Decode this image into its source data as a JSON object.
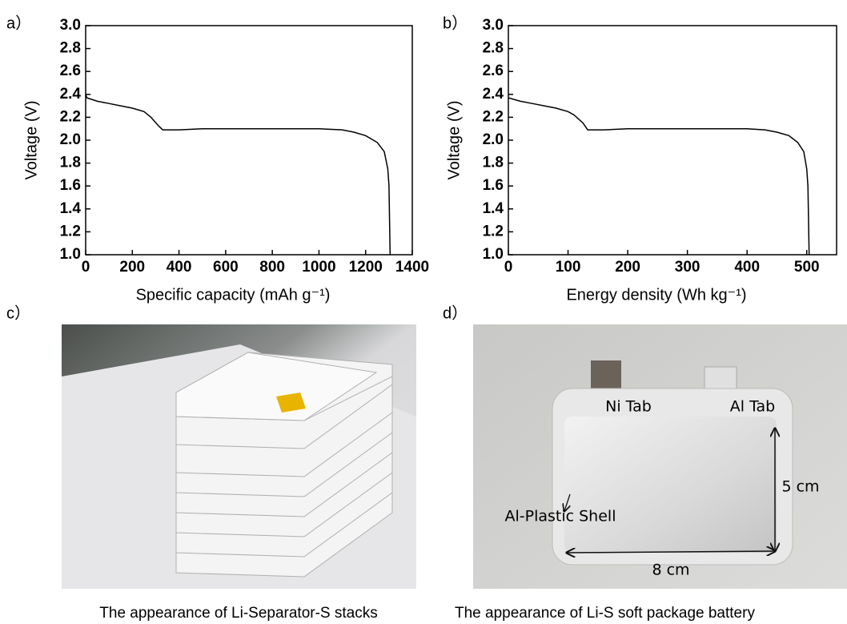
{
  "chart_data": [
    {
      "type": "line",
      "panel_label": "a）",
      "x_label": "Specific capacity (mAh g⁻¹)",
      "y_label": "Voltage (V)",
      "xlim": [
        0,
        1400
      ],
      "xticks": [
        0,
        200,
        400,
        600,
        800,
        1000,
        1200,
        1400
      ],
      "ylim": [
        1.0,
        3.0
      ],
      "yticks": [
        {
          "value": 1.0,
          "label": "1.0"
        },
        1.2,
        1.4,
        1.6,
        1.8,
        {
          "value": 2.0,
          "label": "2.0"
        },
        2.2,
        2.4,
        2.6,
        2.8,
        {
          "value": 3.0,
          "label": "3.0"
        }
      ],
      "series": [
        {
          "color": "#000000",
          "x": [
            0,
            5,
            50,
            100,
            150,
            200,
            250,
            280,
            310,
            330,
            400,
            500,
            600,
            800,
            1000,
            1100,
            1150,
            1200,
            1250,
            1280,
            1295,
            1300,
            1305
          ],
          "values": [
            2.4,
            2.37,
            2.34,
            2.32,
            2.3,
            2.28,
            2.25,
            2.2,
            2.13,
            2.09,
            2.09,
            2.1,
            2.1,
            2.1,
            2.1,
            2.09,
            2.07,
            2.04,
            1.98,
            1.9,
            1.75,
            1.6,
            1.0
          ]
        }
      ]
    },
    {
      "type": "line",
      "panel_label": "b）",
      "x_label": "Energy density (Wh kg⁻¹)",
      "y_label": "Voltage (V)",
      "xlim": [
        0,
        550
      ],
      "xticks": [
        0,
        100,
        200,
        300,
        400,
        500
      ],
      "ylim": [
        1.0,
        3.0
      ],
      "yticks": [
        {
          "value": 1.0,
          "label": "1.0"
        },
        1.2,
        1.4,
        1.6,
        1.8,
        {
          "value": 2.0,
          "label": "2.0"
        },
        2.2,
        2.4,
        2.6,
        2.8,
        {
          "value": 3.0,
          "label": "3.0"
        }
      ],
      "series": [
        {
          "color": "#000000",
          "x": [
            0,
            20,
            40,
            60,
            80,
            100,
            110,
            125,
            133,
            160,
            200,
            300,
            400,
            430,
            450,
            470,
            485,
            495,
            500,
            502,
            504
          ],
          "values": [
            2.37,
            2.34,
            2.32,
            2.3,
            2.28,
            2.25,
            2.22,
            2.15,
            2.09,
            2.09,
            2.1,
            2.1,
            2.1,
            2.09,
            2.07,
            2.04,
            1.98,
            1.9,
            1.75,
            1.6,
            1.0
          ]
        }
      ]
    }
  ],
  "photos": [
    {
      "label": "c）",
      "caption": "The appearance of Li-Separator-S stacks"
    },
    {
      "label": "d）",
      "caption": "The appearance of Li-S soft package battery",
      "annotations": [
        "Ni Tab",
        "Al Tab",
        "5 cm",
        "Al-Plastic Shell",
        "8 cm"
      ]
    }
  ]
}
